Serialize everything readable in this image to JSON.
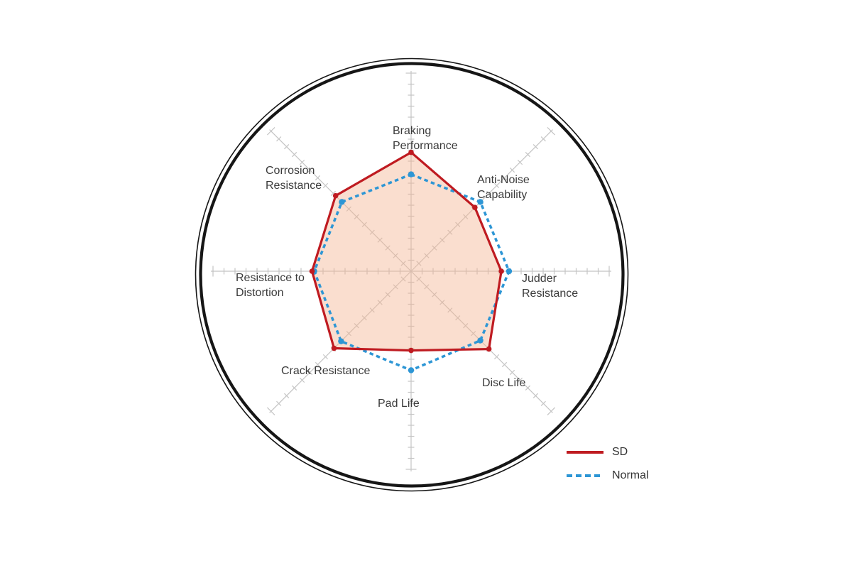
{
  "chart_data": {
    "type": "radar",
    "title": "",
    "categories": [
      "Braking Performance",
      "Anti-Noise Capability",
      "Judder Resistance",
      "Disc Life",
      "Pad Life",
      "Crack Resistance",
      "Resistance to Distortion",
      "Corrosion Resistance"
    ],
    "series": [
      {
        "name": "SD",
        "values": [
          10.8,
          8.2,
          8.2,
          10.0,
          7.2,
          9.9,
          9.0,
          9.7
        ],
        "color": "#bf1b21",
        "line_style": "solid",
        "area_fill": "rgba(243,182,148,0.45)",
        "marker_radius": 3.8
      },
      {
        "name": "Normal",
        "values": [
          8.8,
          8.9,
          8.9,
          8.9,
          9.0,
          9.0,
          8.8,
          8.9
        ],
        "color": "#2d96d5",
        "line_style": "dashed",
        "area_fill": "none",
        "marker_radius": 4.2
      }
    ],
    "scale": {
      "axis_min": 0,
      "axis_max": 18,
      "tick_interval": 1,
      "ticks_per_axis": 18
    },
    "grid": "8 radial ruler spokes with perpendicular tick marks, no concentric rings",
    "axis_color": "#c4c4c4",
    "legend_position": "bottom-right"
  },
  "legend": {
    "items": [
      {
        "label": "SD"
      },
      {
        "label": "Normal"
      }
    ]
  },
  "decor": {
    "outer_ring_color": "#161616",
    "background_color": "#ffffff"
  }
}
